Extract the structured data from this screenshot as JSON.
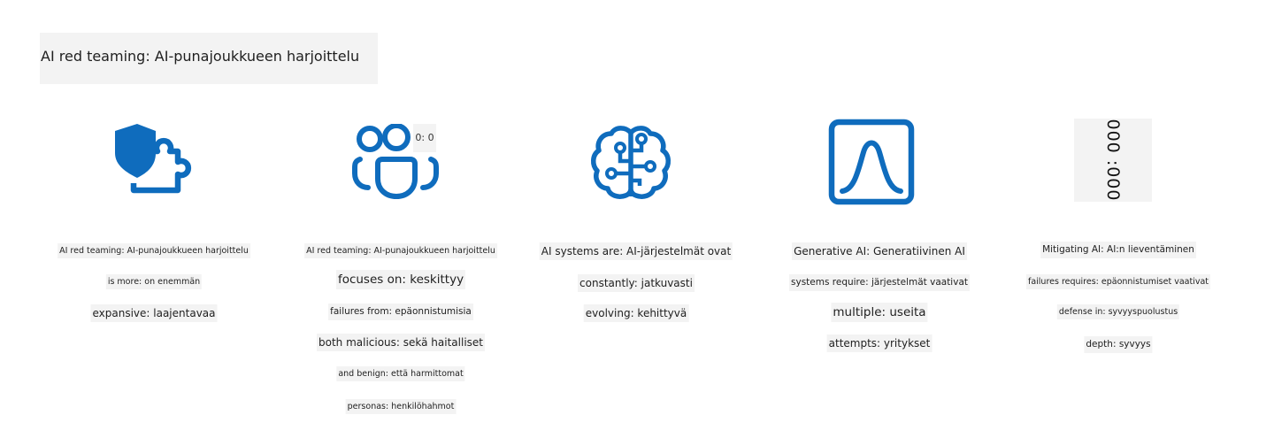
{
  "title": "AI red teaming: AI-punajoukkueen harjoittelu",
  "accent_color": "#0f6cbd",
  "columns": [
    {
      "icon": "shield-puzzle-icon",
      "labels": [
        "AI red teaming: AI-punajoukkueen harjoittelu",
        "is more: on enemmän",
        "expansive: laajentavaa"
      ]
    },
    {
      "icon": "people-team-icon",
      "icon_text": "0: 0",
      "labels": [
        "AI red teaming: AI-punajoukkueen harjoittelu",
        "focuses on: keskittyy",
        "failures from: epäonnistumisia",
        "both malicious: sekä haitalliset",
        "and benign: että harmittomat",
        "personas: henkilöhahmot"
      ]
    },
    {
      "icon": "brain-circuit-icon",
      "labels": [
        "AI systems are: AI-järjestelmät ovat",
        "constantly: jatkuvasti",
        "evolving: kehittyvä"
      ]
    },
    {
      "icon": "bell-curve-icon",
      "labels": [
        "Generative AI: Generatiivinen AI",
        "systems require: järjestelmät vaativat",
        "multiple: useita",
        "attempts: yritykset"
      ]
    },
    {
      "icon": "rotated-numbers-icon",
      "icon_text": "000 :000",
      "labels": [
        "Mitigating AI: AI:n lieventäminen",
        "failures requires: epäonnistumiset vaativat",
        "defense in: syvyyspuolustus",
        "depth: syvyys"
      ]
    }
  ]
}
